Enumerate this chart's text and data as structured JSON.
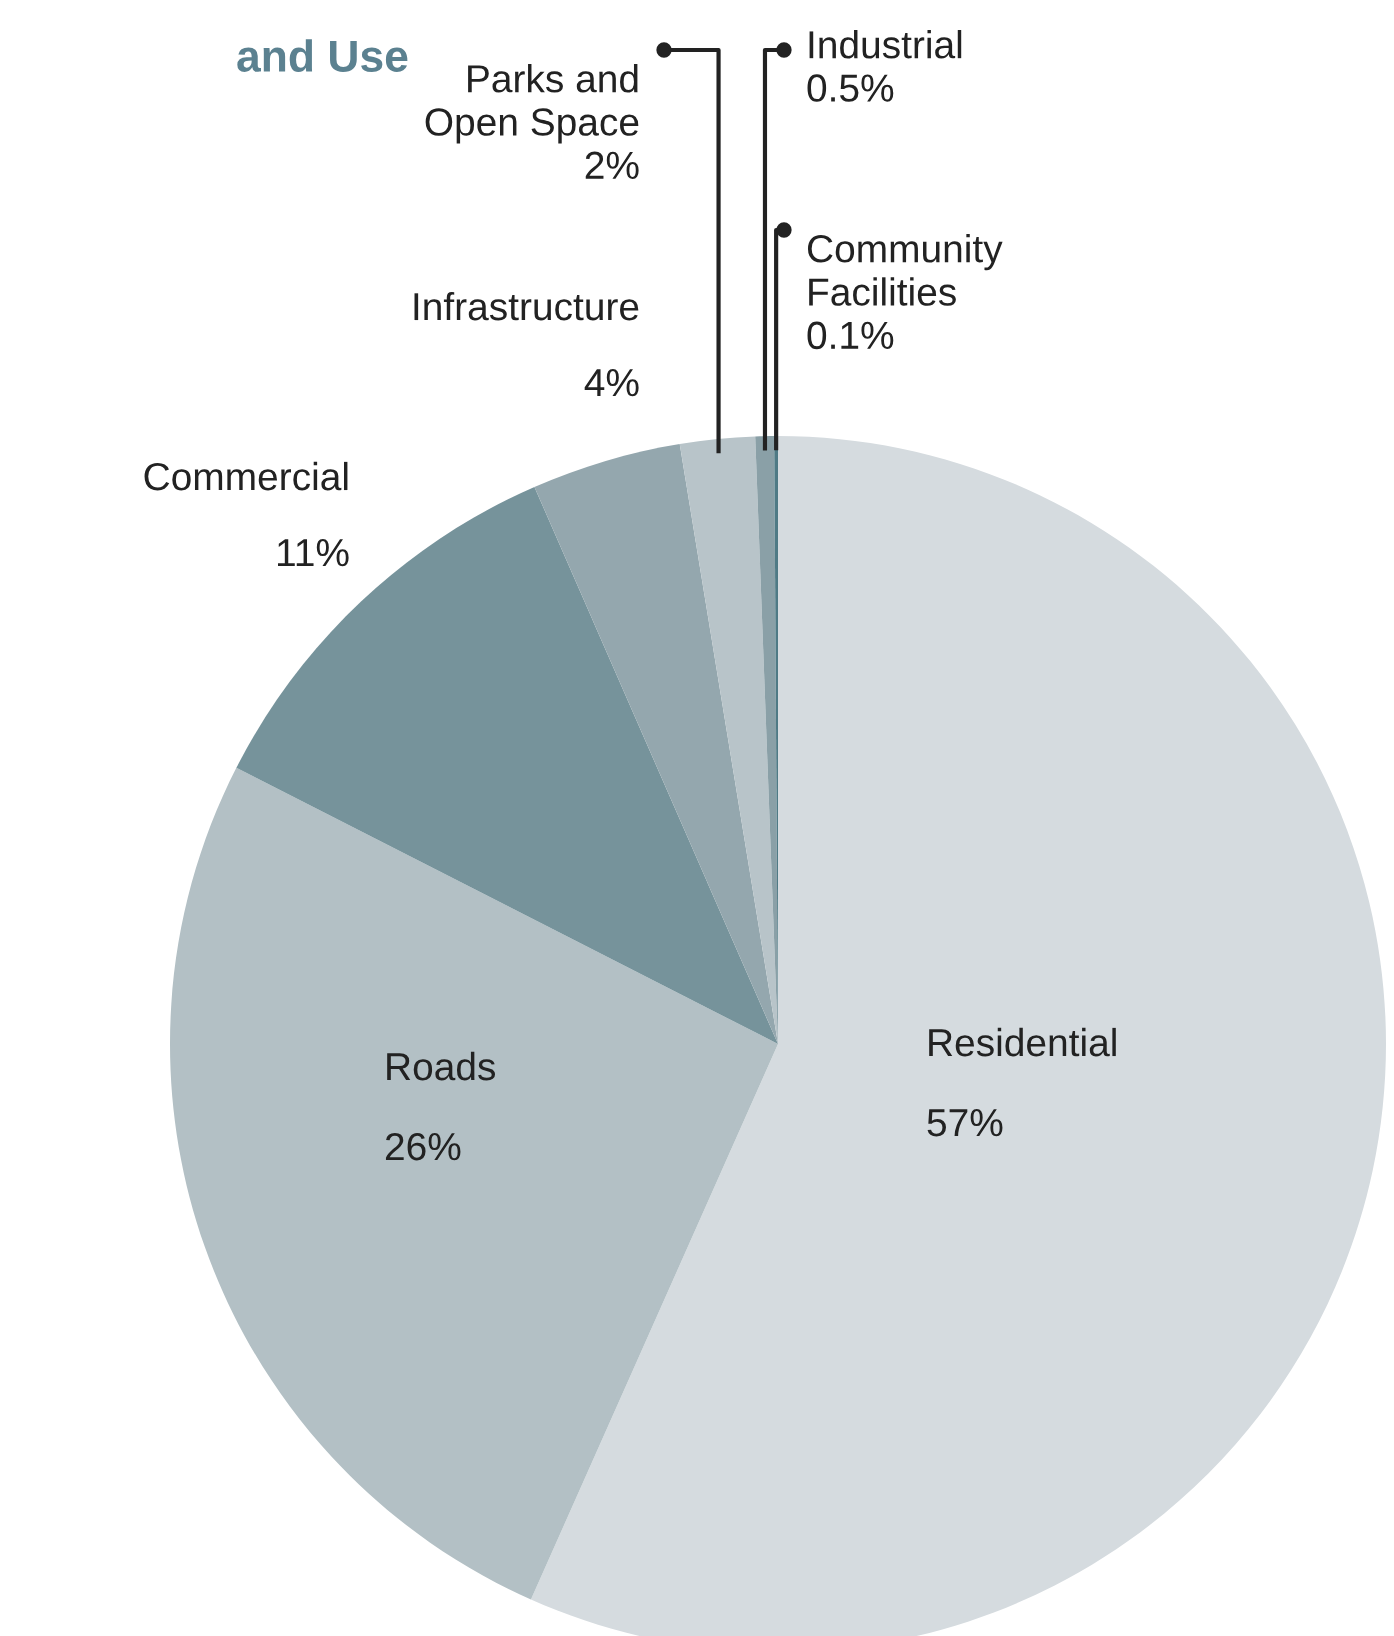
{
  "chart_data": {
    "type": "pie",
    "title": "and Use",
    "categories": [
      "Residential",
      "Roads",
      "Commercial",
      "Infrastructure",
      "Parks and\nOpen Space",
      "Industrial",
      "Community\nFacilities"
    ],
    "values": [
      57,
      26,
      11,
      4,
      2,
      0.5,
      0.1
    ],
    "value_labels": [
      "57%",
      "26%",
      "11%",
      "4%",
      "2%",
      "0.5%",
      "0.1%"
    ],
    "colors": [
      "#d5dbdf",
      "#b3c0c5",
      "#76939b",
      "#94a7ae",
      "#b8c4c9",
      "#8aa0a7",
      "#4f7a85"
    ]
  }
}
